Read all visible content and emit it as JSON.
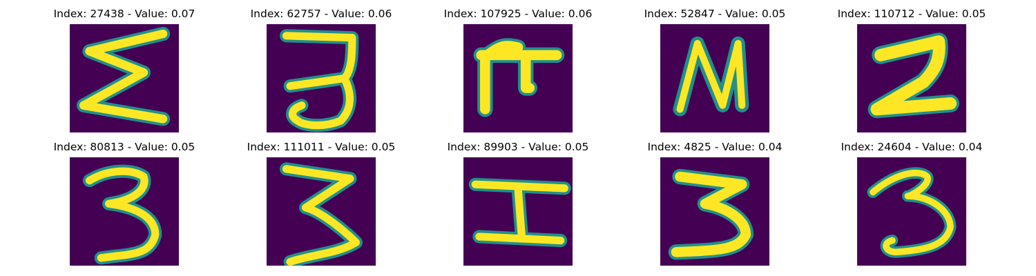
{
  "tiles": [
    {
      "title": "Index: 27438 - Value: 0.07"
    },
    {
      "title": "Index: 62757 - Value: 0.06"
    },
    {
      "title": "Index: 107925 - Value: 0.06"
    },
    {
      "title": "Index: 52847 - Value: 0.05"
    },
    {
      "title": "Index: 110712 - Value: 0.05"
    },
    {
      "title": "Index: 80813 - Value: 0.05"
    },
    {
      "title": "Index: 111011 - Value: 0.05"
    },
    {
      "title": "Index: 89903 - Value: 0.05"
    },
    {
      "title": "Index: 4825 - Value: 0.04"
    },
    {
      "title": "Index: 24604 - Value: 0.04"
    }
  ],
  "colors": {
    "background": "#440154",
    "stroke_edge": "#21908c",
    "stroke_core": "#fde725"
  }
}
